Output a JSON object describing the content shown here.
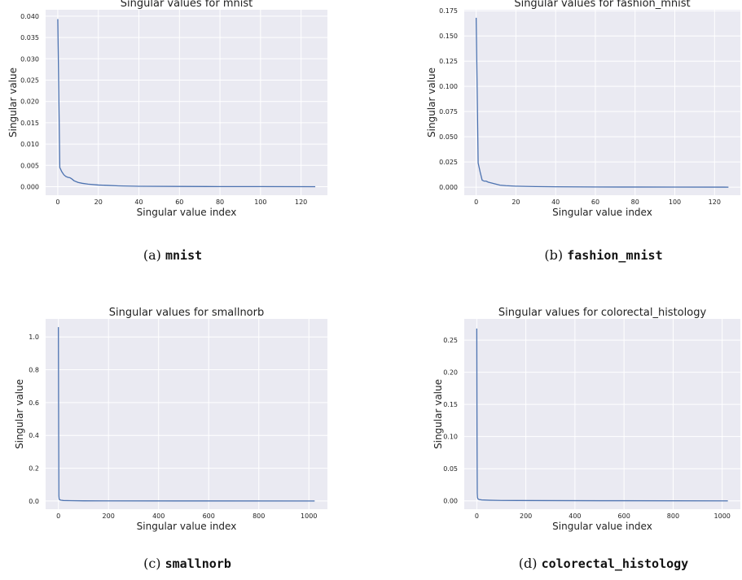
{
  "colors": {
    "background": "#eaeaf2",
    "grid": "#ffffff",
    "line": "#4c72b0",
    "text": "#222222"
  },
  "chart_data": [
    {
      "type": "line",
      "title": "Singular values for mnist",
      "xlabel": "Singular value index",
      "ylabel": "Singular value",
      "xlim": [
        -6,
        133
      ],
      "ylim": [
        -0.002,
        0.0415
      ],
      "xticks": [
        0,
        20,
        40,
        60,
        80,
        100,
        120
      ],
      "yticks": [
        0,
        0.005,
        0.01,
        0.015,
        0.02,
        0.025,
        0.03,
        0.035,
        0.04
      ],
      "ytick_labels": [
        "0.000",
        "0.005",
        "0.010",
        "0.015",
        "0.020",
        "0.025",
        "0.030",
        "0.035",
        "0.040"
      ],
      "grid": true,
      "x": [
        0,
        1,
        2,
        3,
        4,
        5,
        6,
        7,
        8,
        10,
        12,
        15,
        20,
        25,
        30,
        40,
        60,
        80,
        100,
        127
      ],
      "values": [
        0.0393,
        0.0045,
        0.0035,
        0.0028,
        0.0024,
        0.0022,
        0.0021,
        0.0018,
        0.0014,
        0.001,
        0.0008,
        0.0006,
        0.0004,
        0.0003,
        0.0002,
        0.0001,
        6e-05,
        3e-05,
        2e-05,
        0.0
      ],
      "caption": {
        "label": "(a)",
        "name": "mnist"
      }
    },
    {
      "type": "line",
      "title": "Singular values for fashion_mnist",
      "xlabel": "Singular value index",
      "ylabel": "Singular value",
      "xlim": [
        -6,
        133
      ],
      "ylim": [
        -0.008,
        0.176
      ],
      "xticks": [
        0,
        20,
        40,
        60,
        80,
        100,
        120
      ],
      "yticks": [
        0,
        0.025,
        0.05,
        0.075,
        0.1,
        0.125,
        0.15,
        0.175
      ],
      "ytick_labels": [
        "0.000",
        "0.025",
        "0.050",
        "0.075",
        "0.100",
        "0.125",
        "0.150",
        "0.175"
      ],
      "grid": true,
      "x": [
        0,
        1,
        2,
        3,
        4,
        5,
        6,
        8,
        10,
        12,
        15,
        20,
        25,
        30,
        40,
        60,
        80,
        100,
        127
      ],
      "values": [
        0.168,
        0.024,
        0.015,
        0.007,
        0.006,
        0.006,
        0.005,
        0.004,
        0.003,
        0.002,
        0.0015,
        0.001,
        0.0008,
        0.0006,
        0.0004,
        0.0002,
        0.0001,
        5e-05,
        0.0
      ],
      "caption": {
        "label": "(b)",
        "name": "fashion_mnist"
      }
    },
    {
      "type": "line",
      "title": "Singular values for smallnorb",
      "xlabel": "Singular value index",
      "ylabel": "Singular value",
      "xlim": [
        -51,
        1074
      ],
      "ylim": [
        -0.05,
        1.11
      ],
      "xticks": [
        0,
        200,
        400,
        600,
        800,
        1000
      ],
      "yticks": [
        0,
        0.2,
        0.4,
        0.6,
        0.8,
        1.0
      ],
      "ytick_labels": [
        "0.0",
        "0.2",
        "0.4",
        "0.6",
        "0.8",
        "1.0"
      ],
      "grid": true,
      "x": [
        0,
        1,
        2,
        3,
        5,
        10,
        20,
        50,
        100,
        500,
        1023
      ],
      "values": [
        1.06,
        0.45,
        0.03,
        0.012,
        0.008,
        0.005,
        0.003,
        0.002,
        0.001,
        0.0005,
        0.0
      ],
      "caption": {
        "label": "(c)",
        "name": "smallnorb"
      }
    },
    {
      "type": "line",
      "title": "Singular values for colorectal_histology",
      "xlabel": "Singular value index",
      "ylabel": "Singular value",
      "xlim": [
        -51,
        1074
      ],
      "ylim": [
        -0.013,
        0.283
      ],
      "xticks": [
        0,
        200,
        400,
        600,
        800,
        1000
      ],
      "yticks": [
        0,
        0.05,
        0.1,
        0.15,
        0.2,
        0.25
      ],
      "ytick_labels": [
        "0.00",
        "0.05",
        "0.10",
        "0.15",
        "0.20",
        "0.25"
      ],
      "grid": true,
      "x": [
        0,
        1,
        2,
        3,
        5,
        10,
        20,
        50,
        100,
        500,
        1023
      ],
      "values": [
        0.268,
        0.1,
        0.012,
        0.005,
        0.003,
        0.002,
        0.0015,
        0.001,
        0.0006,
        0.0002,
        0.0
      ],
      "caption": {
        "label": "(d)",
        "name": "colorectal_histology"
      }
    }
  ]
}
